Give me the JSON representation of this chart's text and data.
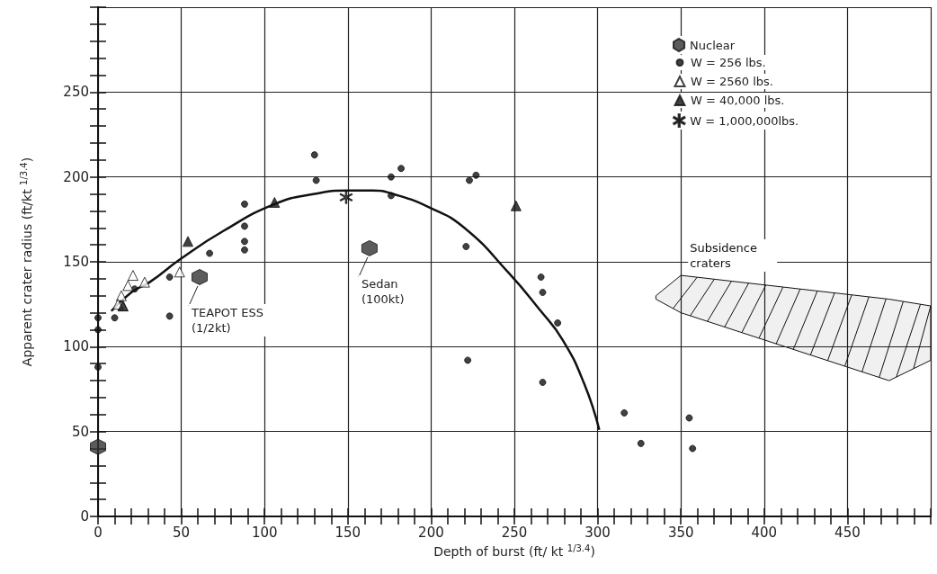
{
  "chart_data": {
    "type": "scatter",
    "xlabel": "Depth of burst (ft/ kt $^{1/3.4}$)",
    "ylabel": "Apparent crater radius (ft/kt $^{1/3.4}$)",
    "xlim": [
      0,
      500
    ],
    "xticks": [
      0,
      50,
      100,
      150,
      200,
      250,
      300,
      350,
      400,
      450,
      {
        "value": 500,
        "label": null
      }
    ],
    "ylim": [
      0,
      300
    ],
    "yticks": [
      0,
      50,
      100,
      150,
      200,
      250,
      {
        "value": 300,
        "label": null
      }
    ],
    "grid": true,
    "legend": "top right",
    "series": [
      {
        "name": "Nuclear",
        "color": "#333333",
        "x": [
          0,
          61,
          163
        ],
        "values": [
          41,
          141,
          158
        ]
      },
      {
        "name": "W = 256 lbs.",
        "marker": "circle",
        "color": "#111111",
        "x": [
          130,
          131,
          176,
          182,
          176,
          223,
          227,
          221,
          88,
          88,
          88,
          88,
          67,
          43,
          266,
          22,
          10,
          43,
          0,
          0,
          0,
          222,
          267,
          276,
          267,
          316,
          326,
          355,
          357
        ],
        "values": [
          213,
          198,
          200,
          205,
          189,
          198,
          201,
          159,
          184,
          171,
          162,
          157,
          155,
          141,
          141,
          134,
          117,
          118,
          117,
          110,
          88,
          92,
          132,
          114,
          79,
          61,
          43,
          58,
          40
        ]
      },
      {
        "name": "W = 2560 lbs.",
        "marker": "triangle",
        "color": "#ffffff",
        "x": [
          21,
          28,
          18,
          14,
          15,
          12,
          49
        ],
        "values": [
          142,
          138,
          136,
          130,
          124,
          125,
          144
        ]
      },
      {
        "name": "W = 40,000 lbs.",
        "marker": "triangle",
        "color": "#111111",
        "x": [
          15,
          54,
          106,
          251
        ],
        "values": [
          124,
          162,
          185,
          183
        ]
      },
      {
        "name": "W = 1,000,000lbs.",
        "marker": "star",
        "color": "#111111",
        "x": [
          149
        ],
        "values": [
          188
        ]
      },
      {
        "type": "line",
        "marker": "none",
        "color": "#111111",
        "x": [
          8,
          20,
          31,
          50,
          75,
          106,
          130,
          150,
          165,
          177,
          199,
          220,
          247,
          265,
          279,
          292,
          301
        ],
        "values": [
          121,
          132,
          138,
          152,
          168,
          184,
          190,
          192,
          192,
          190,
          182,
          170,
          143,
          122,
          104,
          78,
          51
        ]
      },
      {
        "name": "Subsidence craters",
        "type": "area",
        "color": "#111111",
        "x": [
          335,
          350,
          475,
          500
        ],
        "values": [
          null,
          null,
          null,
          null
        ],
        "upper": [
          130,
          142,
          128,
          124
        ],
        "lower": [
          128,
          120,
          80,
          92
        ]
      }
    ],
    "annotations": [
      {
        "text": "TEAPOT ESS\n(1/2kt)",
        "x": 61,
        "y": 141
      },
      {
        "text": "Sedan\n(100kt)",
        "x": 163,
        "y": 158
      }
    ]
  }
}
